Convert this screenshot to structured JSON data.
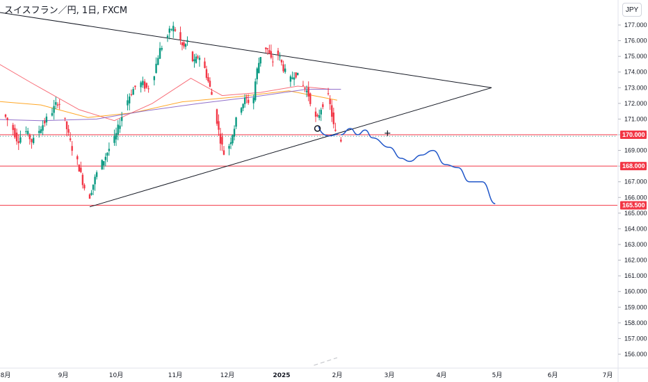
{
  "header": {
    "title": "スイスフラン／円, 1日, FXCM",
    "currency": "JPY"
  },
  "colors": {
    "up": "#089981",
    "down": "#f23645",
    "level": "#f23645",
    "trendline": "#131722",
    "projection": "#2157c9",
    "ma_fast": "#f7525f",
    "ma_mid": "#ff9800",
    "ma_slow": "#7e57c2",
    "dotted": "#2aa198"
  },
  "chart_data": {
    "type": "candlestick",
    "title": "スイスフラン／円, 1日, FXCM",
    "y_axis": {
      "range": [
        155.5,
        177.6
      ],
      "ticks": [
        "156.000",
        "157.000",
        "158.000",
        "159.000",
        "160.000",
        "161.000",
        "162.000",
        "163.000",
        "164.000",
        "165.000",
        "166.000",
        "167.000",
        "168.000",
        "169.000",
        "170.000",
        "171.000",
        "172.000",
        "173.000",
        "174.000",
        "175.000",
        "176.000",
        "177.000"
      ]
    },
    "x_axis": {
      "ticks": [
        {
          "label": "8月",
          "date": "2024-08-01",
          "bold": false
        },
        {
          "label": "9月",
          "date": "2024-09-01",
          "bold": false
        },
        {
          "label": "10月",
          "date": "2024-10-01",
          "bold": false
        },
        {
          "label": "11月",
          "date": "2024-11-01",
          "bold": false
        },
        {
          "label": "12月",
          "date": "2024-12-01",
          "bold": false
        },
        {
          "label": "2025",
          "date": "2025-01-01",
          "bold": true
        },
        {
          "label": "2月",
          "date": "2025-02-01",
          "bold": false
        },
        {
          "label": "3月",
          "date": "2025-03-01",
          "bold": false
        },
        {
          "label": "4月",
          "date": "2025-04-01",
          "bold": false
        },
        {
          "label": "5月",
          "date": "2025-05-01",
          "bold": false
        },
        {
          "label": "6月",
          "date": "2025-06-01",
          "bold": false
        },
        {
          "label": "7月",
          "date": "2025-07-01",
          "bold": false
        }
      ]
    },
    "price_path": [
      [
        "2024-08-01",
        171.2
      ],
      [
        "2024-08-05",
        170.5
      ],
      [
        "2024-08-08",
        169.6
      ],
      [
        "2024-08-12",
        170.3
      ],
      [
        "2024-08-16",
        169.5
      ],
      [
        "2024-08-20",
        170.4
      ],
      [
        "2024-08-23",
        170.9
      ],
      [
        "2024-08-27",
        171.6
      ],
      [
        "2024-08-30",
        172.2
      ],
      [
        "2024-09-03",
        170.6
      ],
      [
        "2024-09-06",
        169.3
      ],
      [
        "2024-09-10",
        168.1
      ],
      [
        "2024-09-13",
        166.8
      ],
      [
        "2024-09-16",
        165.9
      ],
      [
        "2024-09-18",
        166.7
      ],
      [
        "2024-09-21",
        167.7
      ],
      [
        "2024-09-24",
        168.3
      ],
      [
        "2024-09-27",
        169.0
      ],
      [
        "2024-10-01",
        169.8
      ],
      [
        "2024-10-04",
        171.0
      ],
      [
        "2024-10-08",
        172.4
      ],
      [
        "2024-10-11",
        173.0
      ],
      [
        "2024-10-15",
        173.3
      ],
      [
        "2024-10-18",
        172.9
      ],
      [
        "2024-10-21",
        173.7
      ],
      [
        "2024-10-24",
        175.3
      ],
      [
        "2024-10-28",
        176.2
      ],
      [
        "2024-10-31",
        176.9
      ],
      [
        "2024-11-03",
        176.5
      ],
      [
        "2024-11-06",
        175.5
      ],
      [
        "2024-11-09",
        176.0
      ],
      [
        "2024-11-12",
        174.5
      ],
      [
        "2024-11-15",
        175.1
      ],
      [
        "2024-11-18",
        174.4
      ],
      [
        "2024-11-21",
        173.2
      ],
      [
        "2024-11-24",
        171.9
      ],
      [
        "2024-11-27",
        169.9
      ],
      [
        "2024-11-30",
        168.6
      ],
      [
        "2024-12-03",
        169.5
      ],
      [
        "2024-12-06",
        170.7
      ],
      [
        "2024-12-09",
        171.8
      ],
      [
        "2024-12-12",
        172.3
      ],
      [
        "2024-12-16",
        171.9
      ],
      [
        "2024-12-18",
        173.9
      ],
      [
        "2024-12-21",
        175.3
      ],
      [
        "2024-12-24",
        175.6
      ],
      [
        "2024-12-27",
        174.6
      ],
      [
        "2024-12-30",
        175.3
      ],
      [
        "2025-01-03",
        174.1
      ],
      [
        "2025-01-06",
        173.4
      ],
      [
        "2025-01-09",
        174.0
      ],
      [
        "2025-01-13",
        173.2
      ],
      [
        "2025-01-16",
        172.7
      ],
      [
        "2025-01-19",
        171.7
      ],
      [
        "2025-01-21",
        170.8
      ],
      [
        "2025-01-24",
        171.9
      ],
      [
        "2025-01-27",
        172.6
      ],
      [
        "2025-01-29",
        171.6
      ],
      [
        "2025-01-31",
        170.2
      ],
      [
        "2025-02-03",
        169.6
      ]
    ],
    "horizontal_levels": [
      {
        "value": 170.0,
        "label": "170.000"
      },
      {
        "value": 168.0,
        "label": "168.000"
      },
      {
        "value": 165.5,
        "label": "165.500"
      }
    ],
    "trendlines": [
      {
        "points": [
          [
            "2024-07-18",
            178.0
          ],
          [
            "2025-04-28",
            173.0
          ]
        ]
      },
      {
        "points": [
          [
            "2024-09-16",
            165.4
          ],
          [
            "2025-04-28",
            173.0
          ]
        ]
      }
    ],
    "dotted_level": 169.9,
    "projection_path": [
      [
        "2025-02-03",
        170.0
      ],
      [
        "2025-02-08",
        170.4
      ],
      [
        "2025-02-12",
        170.0
      ],
      [
        "2025-02-16",
        170.3
      ],
      [
        "2025-02-20",
        169.8
      ],
      [
        "2025-03-01",
        169.2
      ],
      [
        "2025-03-08",
        168.5
      ],
      [
        "2025-03-13",
        168.3
      ],
      [
        "2025-03-20",
        168.7
      ],
      [
        "2025-03-27",
        169.0
      ],
      [
        "2025-04-03",
        168.1
      ],
      [
        "2025-04-10",
        167.9
      ],
      [
        "2025-04-16",
        167.0
      ],
      [
        "2025-04-23",
        167.0
      ],
      [
        "2025-04-30",
        165.6
      ]
    ],
    "moving_averages": [
      {
        "color_key": "ma_fast",
        "points": [
          [
            "2024-07-20",
            175.1
          ],
          [
            "2024-08-15",
            173.3
          ],
          [
            "2024-09-10",
            171.6
          ],
          [
            "2024-09-30",
            170.9
          ],
          [
            "2024-10-20",
            172.0
          ],
          [
            "2024-11-10",
            173.6
          ],
          [
            "2024-11-28",
            172.5
          ],
          [
            "2024-12-20",
            172.7
          ],
          [
            "2025-01-10",
            173.1
          ],
          [
            "2025-01-28",
            172.9
          ]
        ]
      },
      {
        "color_key": "ma_mid",
        "points": [
          [
            "2024-07-20",
            172.2
          ],
          [
            "2024-08-20",
            171.9
          ],
          [
            "2024-09-15",
            171.1
          ],
          [
            "2024-10-10",
            171.4
          ],
          [
            "2024-11-05",
            172.1
          ],
          [
            "2024-12-05",
            172.4
          ],
          [
            "2025-01-05",
            172.8
          ],
          [
            "2025-02-01",
            172.2
          ]
        ]
      },
      {
        "color_key": "ma_slow",
        "points": [
          [
            "2024-07-20",
            171.0
          ],
          [
            "2024-08-20",
            170.9
          ],
          [
            "2024-09-20",
            171.0
          ],
          [
            "2024-10-15",
            171.5
          ],
          [
            "2024-11-15",
            172.0
          ],
          [
            "2024-12-15",
            172.4
          ],
          [
            "2025-01-15",
            172.9
          ],
          [
            "2025-02-03",
            172.9
          ]
        ]
      }
    ],
    "markers": [
      {
        "type": "circle",
        "date": "2025-01-21",
        "value": 170.4
      },
      {
        "type": "cross",
        "date": "2025-02-28",
        "value": 170.1
      }
    ]
  }
}
